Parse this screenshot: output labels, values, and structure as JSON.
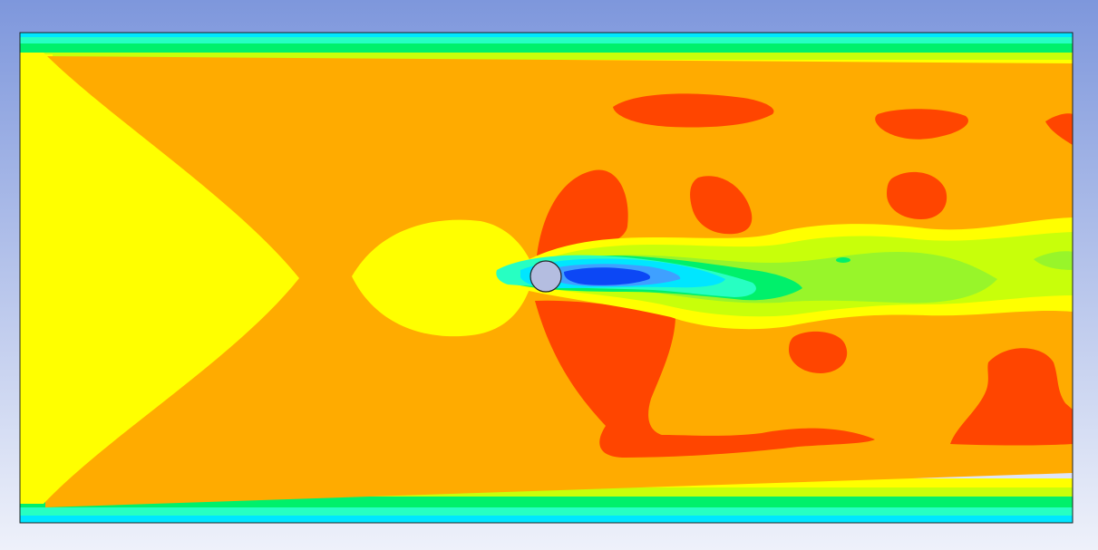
{
  "viewport": {
    "background_top": "#7e97dc",
    "background_bottom": "#eef1fa"
  },
  "contour": {
    "colors": {
      "blue": "#0c47f5",
      "blue_light": "#3fa0ff",
      "cyan": "#00e6ff",
      "aqua": "#27ffc2",
      "green": "#00f06b",
      "green_yellow": "#98f52a",
      "lime": "#c8ff0a",
      "yellow": "#ffff00",
      "orange": "#ffab00",
      "red": "#ff4500"
    },
    "cylinder_fill": "#b4bde0",
    "outline": "#222222"
  }
}
